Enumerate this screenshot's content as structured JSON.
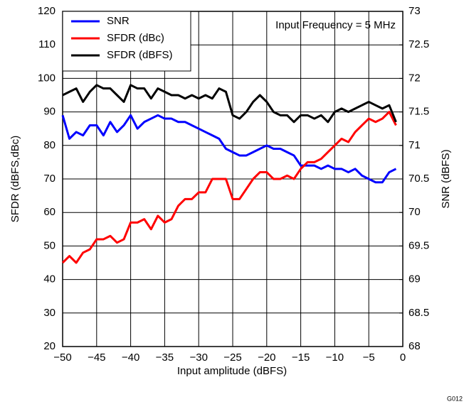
{
  "chart_data": {
    "type": "line",
    "x_label": "Input amplitude (dBFS)",
    "y_label": "SFDR (dBFS,dBc)",
    "y2_label": "SNR (dBFS)",
    "annotation": "Input Frequency = 5 MHz",
    "figure_id": "G012",
    "x": [
      -50,
      -49,
      -48,
      -47,
      -46,
      -45,
      -44,
      -43,
      -42,
      -41,
      -40,
      -39,
      -38,
      -37,
      -36,
      -35,
      -34,
      -33,
      -32,
      -31,
      -30,
      -29,
      -28,
      -27,
      -26,
      -25,
      -24,
      -23,
      -22,
      -21,
      -20,
      -19,
      -18,
      -17,
      -16,
      -15,
      -14,
      -13,
      -12,
      -11,
      -10,
      -9,
      -8,
      -7,
      -6,
      -5,
      -4,
      -3,
      -2,
      -1
    ],
    "xlim": [
      -50,
      0
    ],
    "xticks": [
      {
        "value": -50,
        "label": "−50"
      },
      {
        "value": -45,
        "label": "−45"
      },
      {
        "value": -40,
        "label": "−40"
      },
      {
        "value": -35,
        "label": "−35"
      },
      {
        "value": -30,
        "label": "−30"
      },
      {
        "value": -25,
        "label": "−25"
      },
      {
        "value": -20,
        "label": "−20"
      },
      {
        "value": -15,
        "label": "−15"
      },
      {
        "value": -10,
        "label": "−10"
      },
      {
        "value": -5,
        "label": "−5"
      },
      0
    ],
    "ylim": [
      20,
      120
    ],
    "yticks": [
      20,
      30,
      40,
      50,
      60,
      70,
      80,
      90,
      100,
      110,
      120
    ],
    "y2lim": [
      68,
      73
    ],
    "y2ticks": [
      68,
      68.5,
      69,
      69.5,
      70,
      70.5,
      71,
      71.5,
      72,
      72.5,
      73
    ],
    "grid": true,
    "legend": "upper left",
    "series": [
      {
        "name": "SNR",
        "color": "#0000ff",
        "axis": "y2",
        "values": [
          71.45,
          71.1,
          71.2,
          71.15,
          71.3,
          71.3,
          71.15,
          71.35,
          71.2,
          71.3,
          71.45,
          71.25,
          71.35,
          71.4,
          71.45,
          71.4,
          71.4,
          71.35,
          71.35,
          71.3,
          71.25,
          71.2,
          71.15,
          71.1,
          70.95,
          70.9,
          70.85,
          70.85,
          70.9,
          70.95,
          71.0,
          70.95,
          70.95,
          70.9,
          70.85,
          70.7,
          70.7,
          70.7,
          70.65,
          70.7,
          70.65,
          70.65,
          70.6,
          70.65,
          70.55,
          70.5,
          70.45,
          70.45,
          70.6,
          70.65
        ]
      },
      {
        "name": "SFDR (dBc)",
        "color": "#ff0000",
        "values": [
          45,
          47,
          45,
          48,
          49,
          52,
          52,
          53,
          51,
          52,
          57,
          57,
          58,
          55,
          59,
          57,
          58,
          62,
          64,
          64,
          66,
          66,
          70,
          70,
          70,
          64,
          64,
          67,
          70,
          72,
          72,
          70,
          70,
          71,
          70,
          73,
          75,
          75,
          76,
          78,
          80,
          82,
          81,
          84,
          86,
          88,
          87,
          88,
          90,
          86
        ]
      },
      {
        "name": "SFDR (dBFS)",
        "color": "#000000",
        "values": [
          95,
          96,
          97,
          93,
          96,
          98,
          97,
          97,
          95,
          93,
          98,
          97,
          97,
          94,
          97,
          96,
          95,
          95,
          94,
          95,
          94,
          95,
          94,
          97,
          96,
          89,
          88,
          90,
          93,
          95,
          93,
          90,
          89,
          89,
          87,
          89,
          89,
          88,
          89,
          87,
          90,
          91,
          90,
          91,
          92,
          93,
          92,
          91,
          92,
          87
        ]
      }
    ]
  }
}
